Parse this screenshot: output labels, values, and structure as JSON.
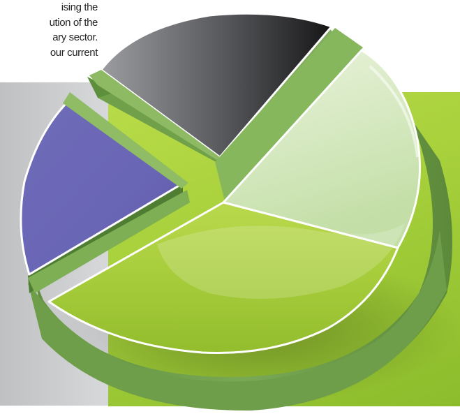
{
  "intro_text": {
    "lines": [
      "ising the",
      "ution of  the",
      "ary sector.",
      "our current"
    ]
  },
  "colors": {
    "slice_green": "#a6cc3c",
    "slice_light_green": "#d9ebc4",
    "slice_gray": "#3a3a3c",
    "slice_purple": "#5f5aa8",
    "rim_green": "#6f9e4a",
    "background_green": "#a8d13c",
    "background_gray": "#d5d6d8"
  },
  "illustration": {
    "subject": "3d-pie-chart-graphic",
    "slices": [
      "green",
      "light-green",
      "gray",
      "purple"
    ]
  }
}
